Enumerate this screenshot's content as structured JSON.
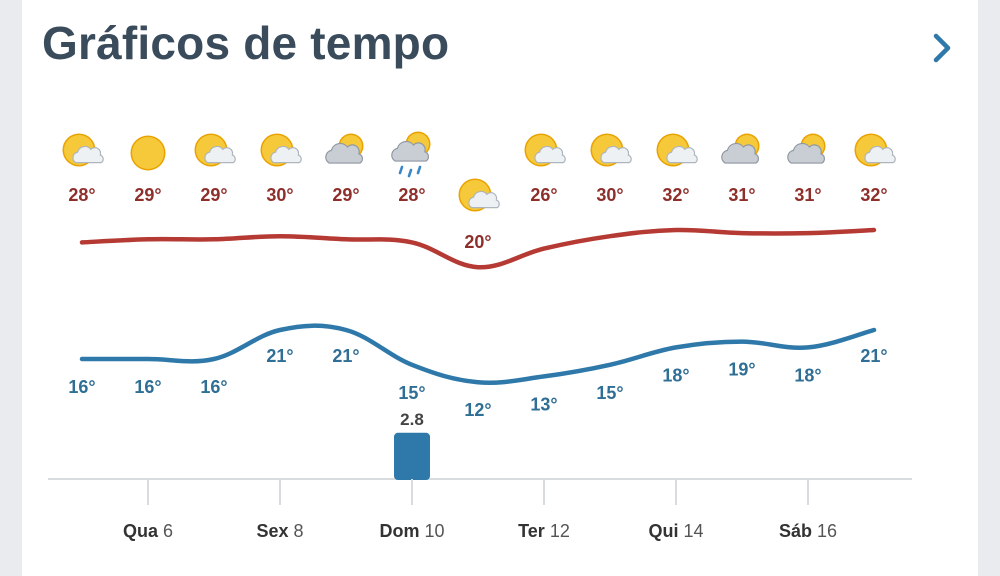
{
  "header": {
    "title": "Gráficos de tempo",
    "next_icon": "chevron-right-icon"
  },
  "colors": {
    "max_line": "#b63a34",
    "min_line": "#2f79aa",
    "precip_bar": "#2f79aa",
    "title": "#3a4b5c"
  },
  "chart_data": {
    "type": "line",
    "unit": "°",
    "columns": [
      {
        "icon": "partly-cloudy-icon",
        "max": 28,
        "min": 16
      },
      {
        "icon": "sun-icon",
        "max": 29,
        "min": 16
      },
      {
        "icon": "partly-cloudy-icon",
        "max": 29,
        "min": 16
      },
      {
        "icon": "partly-cloudy-icon",
        "max": 30,
        "min": 21
      },
      {
        "icon": "cloudy-icon",
        "max": 29,
        "min": 21
      },
      {
        "icon": "rain-icon",
        "max": 28,
        "min": 15,
        "precip": 2.8
      },
      {
        "icon": "partly-cloudy-icon",
        "max": 20,
        "min": 12
      },
      {
        "icon": "partly-cloudy-icon",
        "max": 26,
        "min": 13
      },
      {
        "icon": "partly-cloudy-icon",
        "max": 30,
        "min": 15
      },
      {
        "icon": "partly-cloudy-icon",
        "max": 32,
        "min": 18
      },
      {
        "icon": "cloudy-icon",
        "max": 31,
        "min": 19
      },
      {
        "icon": "cloudy-icon",
        "max": 31,
        "min": 18
      },
      {
        "icon": "partly-cloudy-icon",
        "max": 32,
        "min": 21
      }
    ],
    "x_ticks": [
      {
        "day": "Qua",
        "num": "6",
        "col": 1
      },
      {
        "day": "Sex",
        "num": "8",
        "col": 3
      },
      {
        "day": "Dom",
        "num": "10",
        "col": 5
      },
      {
        "day": "Ter",
        "num": "12",
        "col": 7
      },
      {
        "day": "Qui",
        "num": "14",
        "col": 9
      },
      {
        "day": "Sáb",
        "num": "16",
        "col": 11
      }
    ]
  }
}
